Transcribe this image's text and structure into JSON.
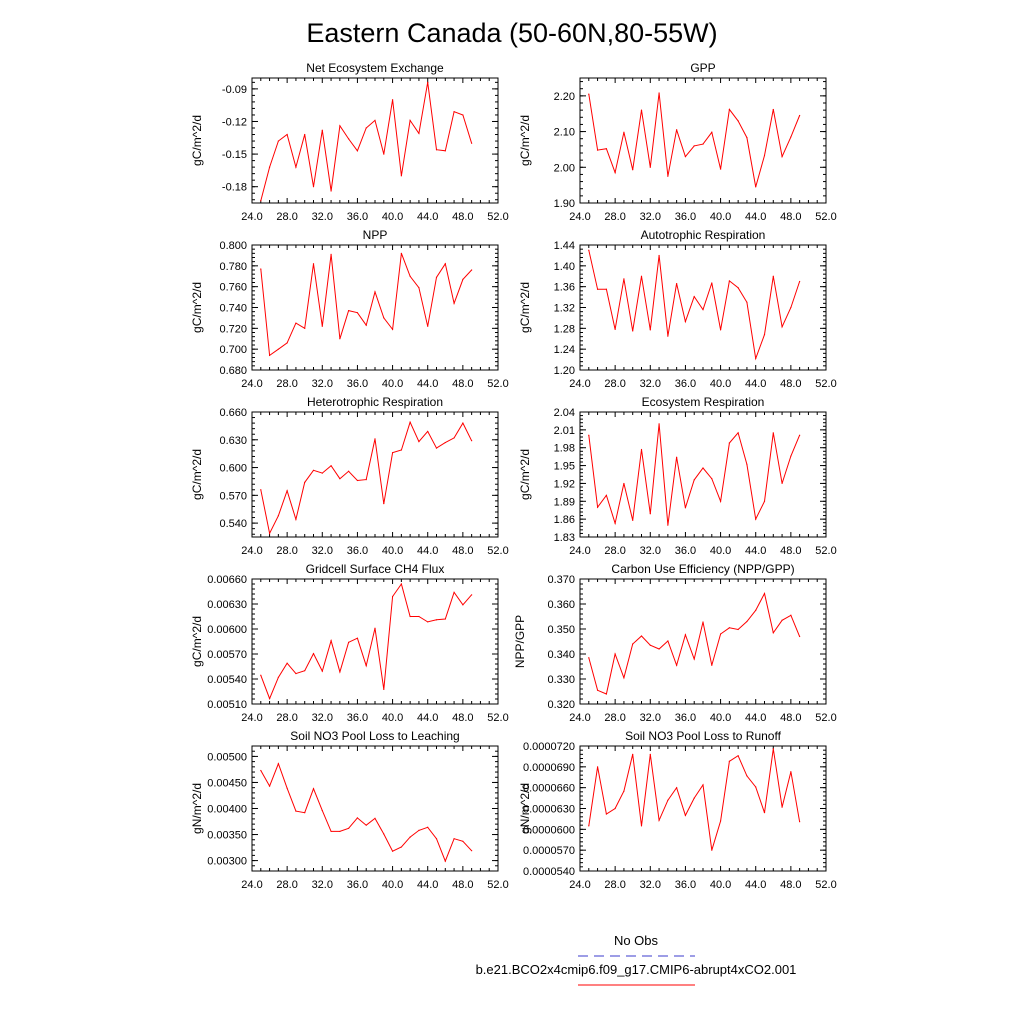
{
  "figure": {
    "title": "Eastern Canada (50-60N,80-55W)",
    "legend": {
      "entries": [
        {
          "label": "No Obs",
          "color": "#3b3bcc",
          "style": "dashed"
        },
        {
          "label": "b.e21.BCO2x4cmip6.f09_g17.CMIP6-abrupt4xCO2.001",
          "color": "#ff0000",
          "style": "solid"
        }
      ]
    }
  },
  "chart_data": [
    {
      "type": "line",
      "title": "Net Ecosystem Exchange",
      "xlabel": "",
      "ylabel": "gC/m^2/d",
      "xlim": [
        24,
        52
      ],
      "ylim": [
        -0.195,
        -0.08
      ],
      "xticks": [
        "24.0",
        "28.0",
        "32.0",
        "36.0",
        "40.0",
        "44.0",
        "48.0",
        "52.0"
      ],
      "yticks": [
        -0.18,
        -0.15,
        -0.12,
        -0.09
      ],
      "ytick_labels": [
        "-0.18",
        "-0.15",
        "-0.12",
        "-0.09"
      ],
      "x": [
        25,
        26,
        27,
        28,
        29,
        30,
        31,
        32,
        33,
        34,
        35,
        36,
        37,
        38,
        39,
        40,
        41,
        42,
        43,
        44,
        45,
        46,
        47,
        48,
        49
      ],
      "series": [
        {
          "color": "#ff0000",
          "values": [
            -0.193,
            -0.162,
            -0.138,
            -0.132,
            -0.162,
            -0.132,
            -0.18,
            -0.128,
            -0.184,
            -0.124,
            -0.136,
            -0.147,
            -0.126,
            -0.119,
            -0.15,
            -0.1,
            -0.17,
            -0.119,
            -0.131,
            -0.084,
            -0.146,
            -0.147,
            -0.111,
            -0.114,
            -0.14
          ]
        }
      ]
    },
    {
      "type": "line",
      "title": "GPP",
      "xlabel": "",
      "ylabel": "gC/m^2/d",
      "xlim": [
        24,
        52
      ],
      "ylim": [
        1.9,
        2.25
      ],
      "xticks": [
        "24.0",
        "28.0",
        "32.0",
        "36.0",
        "40.0",
        "44.0",
        "48.0",
        "52.0"
      ],
      "yticks": [
        1.9,
        2.0,
        2.1,
        2.2
      ],
      "ytick_labels": [
        "1.90",
        "2.00",
        "2.10",
        "2.20"
      ],
      "x": [
        25,
        26,
        27,
        28,
        29,
        30,
        31,
        32,
        33,
        34,
        35,
        36,
        37,
        38,
        39,
        40,
        41,
        42,
        43,
        44,
        45,
        46,
        47,
        48,
        49
      ],
      "series": [
        {
          "color": "#ff0000",
          "values": [
            2.205,
            2.048,
            2.052,
            1.985,
            2.098,
            1.993,
            2.16,
            2.0,
            2.208,
            1.975,
            2.105,
            2.03,
            2.06,
            2.065,
            2.098,
            1.995,
            2.162,
            2.13,
            2.083,
            1.945,
            2.033,
            2.162,
            2.03,
            2.085,
            2.145
          ]
        }
      ]
    },
    {
      "type": "line",
      "title": "NPP",
      "xlabel": "",
      "ylabel": "gC/m^2/d",
      "xlim": [
        24,
        52
      ],
      "ylim": [
        0.68,
        0.8
      ],
      "xticks": [
        "24.0",
        "28.0",
        "32.0",
        "36.0",
        "40.0",
        "44.0",
        "48.0",
        "52.0"
      ],
      "yticks": [
        0.68,
        0.7,
        0.72,
        0.74,
        0.76,
        0.78,
        0.8
      ],
      "ytick_labels": [
        "0.680",
        "0.700",
        "0.720",
        "0.740",
        "0.760",
        "0.780",
        "0.800"
      ],
      "x": [
        25,
        26,
        27,
        28,
        29,
        30,
        31,
        32,
        33,
        34,
        35,
        36,
        37,
        38,
        39,
        40,
        41,
        42,
        43,
        44,
        45,
        46,
        47,
        48,
        49
      ],
      "series": [
        {
          "color": "#ff0000",
          "values": [
            0.777,
            0.694,
            0.7,
            0.706,
            0.725,
            0.72,
            0.782,
            0.722,
            0.791,
            0.71,
            0.737,
            0.735,
            0.723,
            0.755,
            0.73,
            0.719,
            0.792,
            0.77,
            0.759,
            0.722,
            0.769,
            0.782,
            0.744,
            0.767,
            0.776
          ]
        }
      ]
    },
    {
      "type": "line",
      "title": "Autotrophic Respiration",
      "xlabel": "",
      "ylabel": "gC/m^2/d",
      "xlim": [
        24,
        52
      ],
      "ylim": [
        1.2,
        1.44
      ],
      "xticks": [
        "24.0",
        "28.0",
        "32.0",
        "36.0",
        "40.0",
        "44.0",
        "48.0",
        "52.0"
      ],
      "yticks": [
        1.2,
        1.24,
        1.28,
        1.32,
        1.36,
        1.4,
        1.44
      ],
      "ytick_labels": [
        "1.20",
        "1.24",
        "1.28",
        "1.32",
        "1.36",
        "1.40",
        "1.44"
      ],
      "x": [
        25,
        26,
        27,
        28,
        29,
        30,
        31,
        32,
        33,
        34,
        35,
        36,
        37,
        38,
        39,
        40,
        41,
        42,
        43,
        44,
        45,
        46,
        47,
        48,
        49
      ],
      "series": [
        {
          "color": "#ff0000",
          "values": [
            1.43,
            1.355,
            1.355,
            1.278,
            1.375,
            1.275,
            1.38,
            1.277,
            1.42,
            1.265,
            1.366,
            1.293,
            1.341,
            1.316,
            1.367,
            1.277,
            1.371,
            1.358,
            1.33,
            1.222,
            1.268,
            1.38,
            1.283,
            1.32,
            1.37
          ]
        }
      ]
    },
    {
      "type": "line",
      "title": "Heterotrophic Respiration",
      "xlabel": "",
      "ylabel": "gC/m^2/d",
      "xlim": [
        24,
        52
      ],
      "ylim": [
        0.525,
        0.66
      ],
      "xticks": [
        "24.0",
        "28.0",
        "32.0",
        "36.0",
        "40.0",
        "44.0",
        "48.0",
        "52.0"
      ],
      "yticks": [
        0.54,
        0.57,
        0.6,
        0.63,
        0.66
      ],
      "ytick_labels": [
        "0.540",
        "0.570",
        "0.600",
        "0.630",
        "0.660"
      ],
      "x": [
        25,
        26,
        27,
        28,
        29,
        30,
        31,
        32,
        33,
        34,
        35,
        36,
        37,
        38,
        39,
        40,
        41,
        42,
        43,
        44,
        45,
        46,
        47,
        48,
        49
      ],
      "series": [
        {
          "color": "#ff0000",
          "values": [
            0.576,
            0.529,
            0.548,
            0.575,
            0.544,
            0.584,
            0.597,
            0.594,
            0.602,
            0.588,
            0.596,
            0.586,
            0.587,
            0.631,
            0.561,
            0.616,
            0.619,
            0.649,
            0.628,
            0.639,
            0.621,
            0.627,
            0.632,
            0.648,
            0.629
          ]
        }
      ]
    },
    {
      "type": "line",
      "title": "Ecosystem Respiration",
      "xlabel": "",
      "ylabel": "gC/m^2/d",
      "xlim": [
        24,
        52
      ],
      "ylim": [
        1.83,
        2.04
      ],
      "xticks": [
        "24.0",
        "28.0",
        "32.0",
        "36.0",
        "40.0",
        "44.0",
        "48.0",
        "52.0"
      ],
      "yticks": [
        1.83,
        1.86,
        1.89,
        1.92,
        1.95,
        1.98,
        2.01,
        2.04
      ],
      "ytick_labels": [
        "1.83",
        "1.86",
        "1.89",
        "1.92",
        "1.95",
        "1.98",
        "2.01",
        "2.04"
      ],
      "x": [
        25,
        26,
        27,
        28,
        29,
        30,
        31,
        32,
        33,
        34,
        35,
        36,
        37,
        38,
        39,
        40,
        41,
        42,
        43,
        44,
        45,
        46,
        47,
        48,
        49
      ],
      "series": [
        {
          "color": "#ff0000",
          "values": [
            2.001,
            1.88,
            1.9,
            1.853,
            1.92,
            1.858,
            1.977,
            1.869,
            2.02,
            1.85,
            1.964,
            1.879,
            1.926,
            1.946,
            1.928,
            1.89,
            1.988,
            2.005,
            1.952,
            1.86,
            1.89,
            2.005,
            1.92,
            1.966,
            2.001
          ]
        }
      ]
    },
    {
      "type": "line",
      "title": "Gridcell Surface CH4 Flux",
      "xlabel": "",
      "ylabel": "gC/m^2/d",
      "xlim": [
        24,
        52
      ],
      "ylim": [
        0.0051,
        0.0066
      ],
      "xticks": [
        "24.0",
        "28.0",
        "32.0",
        "36.0",
        "40.0",
        "44.0",
        "48.0",
        "52.0"
      ],
      "yticks": [
        0.0051,
        0.0054,
        0.0057,
        0.006,
        0.0063,
        0.0066
      ],
      "ytick_labels": [
        "0.00510",
        "0.00540",
        "0.00570",
        "0.00600",
        "0.00630",
        "0.00660"
      ],
      "x": [
        25,
        26,
        27,
        28,
        29,
        30,
        31,
        32,
        33,
        34,
        35,
        36,
        37,
        38,
        39,
        40,
        41,
        42,
        43,
        44,
        45,
        46,
        47,
        48,
        49
      ],
      "series": [
        {
          "color": "#ff0000",
          "values": [
            0.005445,
            0.005165,
            0.00542,
            0.00559,
            0.005465,
            0.0055,
            0.005705,
            0.005495,
            0.00586,
            0.005485,
            0.00584,
            0.00589,
            0.00556,
            0.00601,
            0.005275,
            0.00639,
            0.00654,
            0.00615,
            0.00615,
            0.006085,
            0.00611,
            0.00612,
            0.00644,
            0.00629,
            0.00641
          ]
        }
      ]
    },
    {
      "type": "line",
      "title": "Carbon Use Efficiency (NPP/GPP)",
      "xlabel": "",
      "ylabel": "NPP/GPP",
      "xlim": [
        24,
        52
      ],
      "ylim": [
        0.32,
        0.37
      ],
      "xticks": [
        "24.0",
        "28.0",
        "32.0",
        "36.0",
        "40.0",
        "44.0",
        "48.0",
        "52.0"
      ],
      "yticks": [
        0.32,
        0.33,
        0.34,
        0.35,
        0.36,
        0.37
      ],
      "ytick_labels": [
        "0.320",
        "0.330",
        "0.340",
        "0.350",
        "0.360",
        "0.370"
      ],
      "x": [
        25,
        26,
        27,
        28,
        29,
        30,
        31,
        32,
        33,
        34,
        35,
        36,
        37,
        38,
        39,
        40,
        41,
        42,
        43,
        44,
        45,
        46,
        47,
        48,
        49
      ],
      "series": [
        {
          "color": "#ff0000",
          "values": [
            0.3385,
            0.3255,
            0.324,
            0.34,
            0.3305,
            0.344,
            0.3472,
            0.3435,
            0.342,
            0.3452,
            0.3355,
            0.3477,
            0.338,
            0.3528,
            0.3355,
            0.348,
            0.3505,
            0.3498,
            0.353,
            0.3575,
            0.3642,
            0.3485,
            0.3535,
            0.3555,
            0.347
          ]
        }
      ]
    },
    {
      "type": "line",
      "title": "Soil NO3 Pool Loss to Leaching",
      "xlabel": "",
      "ylabel": "gN/m^2/d",
      "xlim": [
        24,
        52
      ],
      "ylim": [
        0.0028,
        0.0052
      ],
      "xticks": [
        "24.0",
        "28.0",
        "32.0",
        "36.0",
        "40.0",
        "44.0",
        "48.0",
        "52.0"
      ],
      "yticks": [
        0.003,
        0.0035,
        0.004,
        0.0045,
        0.005
      ],
      "ytick_labels": [
        "0.00300",
        "0.00350",
        "0.00400",
        "0.00450",
        "0.00500"
      ],
      "x": [
        25,
        26,
        27,
        28,
        29,
        30,
        31,
        32,
        33,
        34,
        35,
        36,
        37,
        38,
        39,
        40,
        41,
        42,
        43,
        44,
        45,
        46,
        47,
        48,
        49
      ],
      "series": [
        {
          "color": "#ff0000",
          "values": [
            0.00473,
            0.00443,
            0.00486,
            0.00439,
            0.00395,
            0.00392,
            0.00438,
            0.00396,
            0.00356,
            0.00356,
            0.00362,
            0.00382,
            0.00368,
            0.00381,
            0.00351,
            0.00318,
            0.00326,
            0.00345,
            0.00358,
            0.00364,
            0.00342,
            0.00299,
            0.00342,
            0.00337,
            0.00319
          ]
        }
      ]
    },
    {
      "type": "line",
      "title": "Soil NO3 Pool Loss to Runoff",
      "xlabel": "",
      "ylabel": "gN/m^2/d",
      "xlim": [
        24,
        52
      ],
      "ylim": [
        5.4e-05,
        7.2e-05
      ],
      "xticks": [
        "24.0",
        "28.0",
        "32.0",
        "36.0",
        "40.0",
        "44.0",
        "48.0",
        "52.0"
      ],
      "yticks": [
        5.4e-05,
        5.7e-05,
        6e-05,
        6.3e-05,
        6.6e-05,
        6.9e-05,
        7.2e-05
      ],
      "ytick_labels": [
        "0.0000540",
        "0.0000570",
        "0.0000600",
        "0.0000630",
        "0.0000660",
        "0.0000690",
        "0.0000720"
      ],
      "x": [
        25,
        26,
        27,
        28,
        29,
        30,
        31,
        32,
        33,
        34,
        35,
        36,
        37,
        38,
        39,
        40,
        41,
        42,
        43,
        44,
        45,
        46,
        47,
        48,
        49
      ],
      "series": [
        {
          "color": "#ff0000",
          "values": [
            6.05e-05,
            6.9e-05,
            6.22e-05,
            6.3e-05,
            6.55e-05,
            7.08e-05,
            6.05e-05,
            7.08e-05,
            6.13e-05,
            6.42e-05,
            6.6e-05,
            6.2e-05,
            6.45e-05,
            6.64e-05,
            5.7e-05,
            6.12e-05,
            6.98e-05,
            7.06e-05,
            6.77e-05,
            6.61e-05,
            6.24e-05,
            7.16e-05,
            6.32e-05,
            6.83e-05,
            6.11e-05
          ]
        }
      ]
    }
  ]
}
